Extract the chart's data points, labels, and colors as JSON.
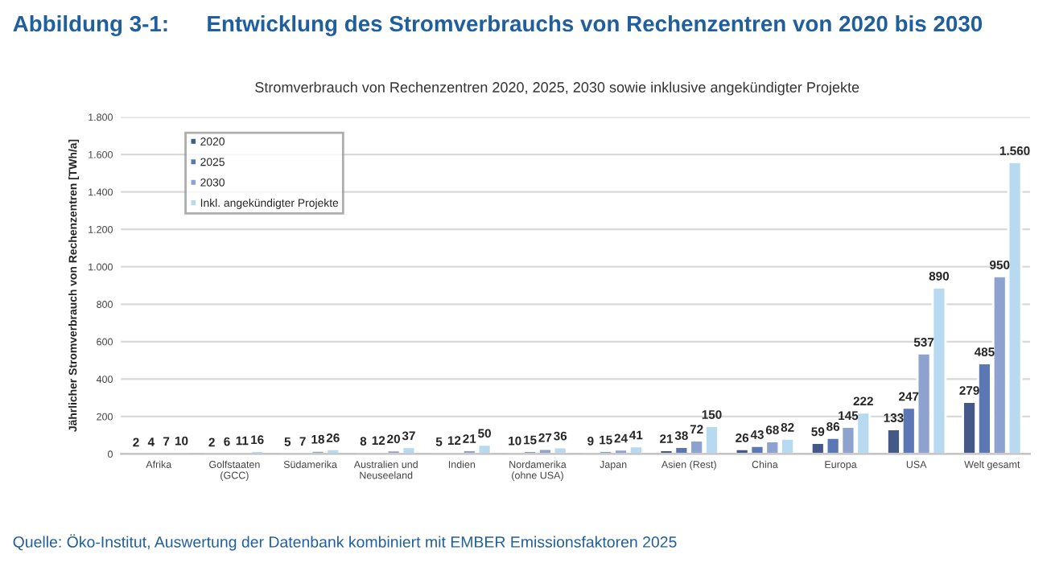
{
  "chart_data": {
    "type": "bar",
    "title": "Abbildung 3-1:      Entwicklung des Stromverbrauchs von Rechenzentren von 2020 bis 2030",
    "subtitle": "Stromverbrauch von Rechenzentren 2020, 2025, 2030 sowie inklusive angekündigter Projekte",
    "ylabel": "Jährlicher Stromverbrauch von Rechenzentren [TWh/a]",
    "categories": [
      "Afrika",
      "Golfstaaten\n(GCC)",
      "Südamerika",
      "Australien und\nNeuseeland",
      "Indien",
      "Nordamerika\n(ohne USA)",
      "Japan",
      "Asien (Rest)",
      "China",
      "Europa",
      "USA",
      "Welt gesamt"
    ],
    "series": [
      {
        "name": "2020",
        "color": "#44598a",
        "values": [
          2,
          2,
          5,
          8,
          5,
          10,
          9,
          21,
          26,
          59,
          133,
          279
        ],
        "value_labels": [
          "2",
          "2",
          "5",
          "8",
          "5",
          "10",
          "9",
          "21",
          "26",
          "59",
          "133",
          "279"
        ]
      },
      {
        "name": "2025",
        "color": "#5b78b5",
        "values": [
          4,
          6,
          7,
          12,
          12,
          15,
          15,
          38,
          43,
          86,
          247,
          485
        ],
        "value_labels": [
          "4",
          "6",
          "7",
          "12",
          "12",
          "15",
          "15",
          "38",
          "43",
          "86",
          "247",
          "485"
        ]
      },
      {
        "name": "2030",
        "color": "#8ea2cf",
        "values": [
          7,
          11,
          18,
          20,
          21,
          27,
          24,
          72,
          68,
          145,
          537,
          950
        ],
        "value_labels": [
          "7",
          "11",
          "18",
          "20",
          "21",
          "27",
          "24",
          "72",
          "68",
          "145",
          "537",
          "950"
        ]
      },
      {
        "name": "Inkl. angekündigter Projekte",
        "color": "#b8daf0",
        "values": [
          10,
          16,
          26,
          37,
          50,
          36,
          41,
          150,
          82,
          222,
          890,
          1560
        ],
        "value_labels": [
          "10",
          "16",
          "26",
          "37",
          "50",
          "36",
          "41",
          "150",
          "82",
          "222",
          "890",
          "1.560"
        ]
      }
    ],
    "ylim": [
      0,
      1800
    ],
    "yticks": [
      0,
      200,
      400,
      600,
      800,
      {
        "value": 1000,
        "label": "1.000"
      },
      {
        "value": 1200,
        "label": "1.200"
      },
      {
        "value": 1400,
        "label": "1.400"
      },
      {
        "value": 1600,
        "label": "1.600"
      },
      {
        "value": 1800,
        "label": "1.800"
      }
    ],
    "grid": "y",
    "legend": "top left",
    "annotations": [
      "Quelle: Öko-Institut, Auswertung der Datenbank kombiniert mit EMBER Emissionsfaktoren 2025"
    ]
  }
}
